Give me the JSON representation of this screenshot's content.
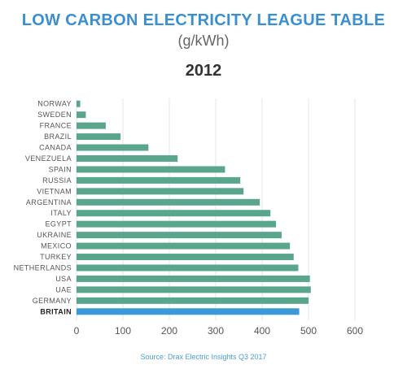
{
  "chart_data": {
    "type": "bar",
    "orientation": "horizontal",
    "title": "LOW CARBON ELECTRICITY LEAGUE TABLE",
    "subtitle": "(g/kWh)",
    "year_label": "2012",
    "categories": [
      "NORWAY",
      "SWEDEN",
      "FRANCE",
      "BRAZIL",
      "CANADA",
      "VENEZUELA",
      "SPAIN",
      "RUSSIA",
      "VIETNAM",
      "ARGENTINA",
      "ITALY",
      "EGYPT",
      "UKRAINE",
      "MEXICO",
      "TURKEY",
      "NETHERLANDS",
      "USA",
      "UAE",
      "GERMANY",
      "BRITAIN"
    ],
    "values": [
      8,
      20,
      63,
      95,
      155,
      218,
      320,
      353,
      360,
      395,
      418,
      430,
      442,
      460,
      468,
      478,
      503,
      505,
      500,
      480
    ],
    "highlight": "BRITAIN",
    "xlim": [
      0,
      600
    ],
    "xticks": [
      "0",
      "100",
      "200",
      "300",
      "400",
      "500",
      "600"
    ],
    "grid": true,
    "colors": {
      "bar": "#5aa68c",
      "highlight": "#3a9ad9",
      "grid": "#e6e6e6"
    },
    "source": "Source: Drax Electric Insights Q3 2017"
  }
}
